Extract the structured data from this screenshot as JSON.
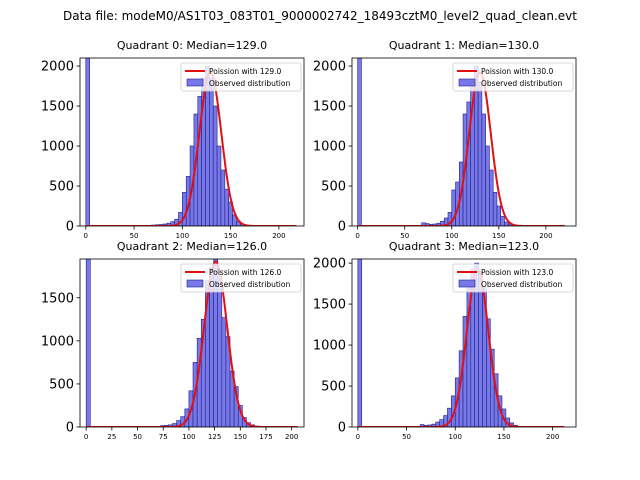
{
  "figure_title": "Data file: modeM0/AS1T03_083T01_9000002742_18493cztM0_level2_quad_clean.evt",
  "colors": {
    "bar_fill": "#7878e6",
    "bar_edge": "#1f1f8f",
    "curve": "#e41010"
  },
  "chart_data": [
    {
      "type": "histogram",
      "title": "Quadrant 0: Median=129.0",
      "median": 129.0,
      "xlim": [
        -6,
        226
      ],
      "ylim": [
        0,
        2100
      ],
      "xticks": [
        0,
        50,
        100,
        150,
        200
      ],
      "yticks": [
        0,
        500,
        1000,
        1500,
        2000
      ],
      "bin_width": 4,
      "bins_start": [
        0,
        68,
        72,
        76,
        80,
        84,
        88,
        92,
        96,
        100,
        104,
        108,
        112,
        116,
        120,
        124,
        128,
        132,
        136,
        140,
        144,
        148,
        152,
        156,
        160,
        164,
        168
      ],
      "counts": [
        2100,
        12,
        15,
        18,
        25,
        35,
        55,
        85,
        170,
        420,
        620,
        1000,
        1400,
        1620,
        1850,
        2000,
        1850,
        1500,
        1000,
        700,
        460,
        300,
        140,
        60,
        25,
        10,
        5
      ],
      "curve_label": "Poission with 129.0",
      "curve_peak": 1920,
      "curve_range": [
        0,
        218
      ],
      "legend": [
        "Poission with 129.0",
        "Observed distribution"
      ]
    },
    {
      "type": "histogram",
      "title": "Quadrant 1: Median=130.0",
      "median": 130.0,
      "xlim": [
        -6,
        232
      ],
      "ylim": [
        0,
        2100
      ],
      "xticks": [
        0,
        50,
        100,
        150,
        200
      ],
      "yticks": [
        0,
        500,
        1000,
        1500,
        2000
      ],
      "bin_width": 4,
      "bins_start": [
        0,
        68,
        72,
        76,
        80,
        84,
        88,
        92,
        96,
        100,
        104,
        108,
        112,
        116,
        120,
        124,
        128,
        132,
        136,
        140,
        144,
        148,
        152,
        156,
        160,
        164,
        168
      ],
      "counts": [
        2100,
        40,
        30,
        20,
        25,
        35,
        60,
        100,
        170,
        450,
        550,
        800,
        1400,
        1550,
        1800,
        2000,
        1800,
        1400,
        1000,
        700,
        420,
        250,
        120,
        50,
        25,
        10,
        5
      ],
      "curve_label": "Poission with 130.0",
      "curve_peak": 1920,
      "curve_range": [
        0,
        220
      ],
      "legend": [
        "Poission with 130.0",
        "Observed distribution"
      ]
    },
    {
      "type": "histogram",
      "title": "Quadrant 2: Median=126.0",
      "median": 126.0,
      "xlim": [
        -6,
        212
      ],
      "ylim": [
        0,
        1950
      ],
      "xticks": [
        0,
        25,
        50,
        75,
        100,
        125,
        150,
        175,
        200
      ],
      "yticks": [
        0,
        500,
        1000,
        1500
      ],
      "bin_width": 4,
      "bins_start": [
        0,
        72,
        76,
        80,
        84,
        88,
        92,
        96,
        100,
        104,
        108,
        112,
        116,
        120,
        124,
        128,
        132,
        136,
        140,
        144,
        148,
        152,
        156,
        160,
        164,
        168
      ],
      "counts": [
        1950,
        15,
        20,
        25,
        40,
        75,
        120,
        210,
        420,
        750,
        1030,
        1250,
        1700,
        1850,
        1950,
        1750,
        1270,
        1050,
        650,
        470,
        250,
        110,
        50,
        25,
        10,
        5
      ],
      "curve_label": "Poission with 126.0",
      "curve_peak": 1920,
      "curve_range": [
        0,
        206
      ],
      "legend": [
        "Poission with 126.0",
        "Observed distribution"
      ]
    },
    {
      "type": "histogram",
      "title": "Quadrant 3: Median=123.0",
      "median": 123.0,
      "xlim": [
        -6,
        224
      ],
      "ylim": [
        0,
        2050
      ],
      "xticks": [
        0,
        50,
        100,
        150,
        200
      ],
      "yticks": [
        0,
        500,
        1000,
        1500,
        2000
      ],
      "bin_width": 4,
      "bins_start": [
        0,
        64,
        68,
        72,
        76,
        80,
        84,
        88,
        92,
        96,
        100,
        104,
        108,
        112,
        116,
        120,
        124,
        128,
        132,
        136,
        140,
        144,
        148,
        152,
        156,
        160
      ],
      "counts": [
        2050,
        30,
        20,
        25,
        35,
        60,
        90,
        140,
        230,
        380,
        600,
        930,
        1350,
        1720,
        1920,
        2000,
        1900,
        1700,
        1320,
        950,
        650,
        380,
        220,
        110,
        50,
        20
      ],
      "curve_label": "Poission with 123.0",
      "curve_peak": 1920,
      "curve_range": [
        0,
        212
      ],
      "legend": [
        "Poission with 123.0",
        "Observed distribution"
      ]
    }
  ]
}
